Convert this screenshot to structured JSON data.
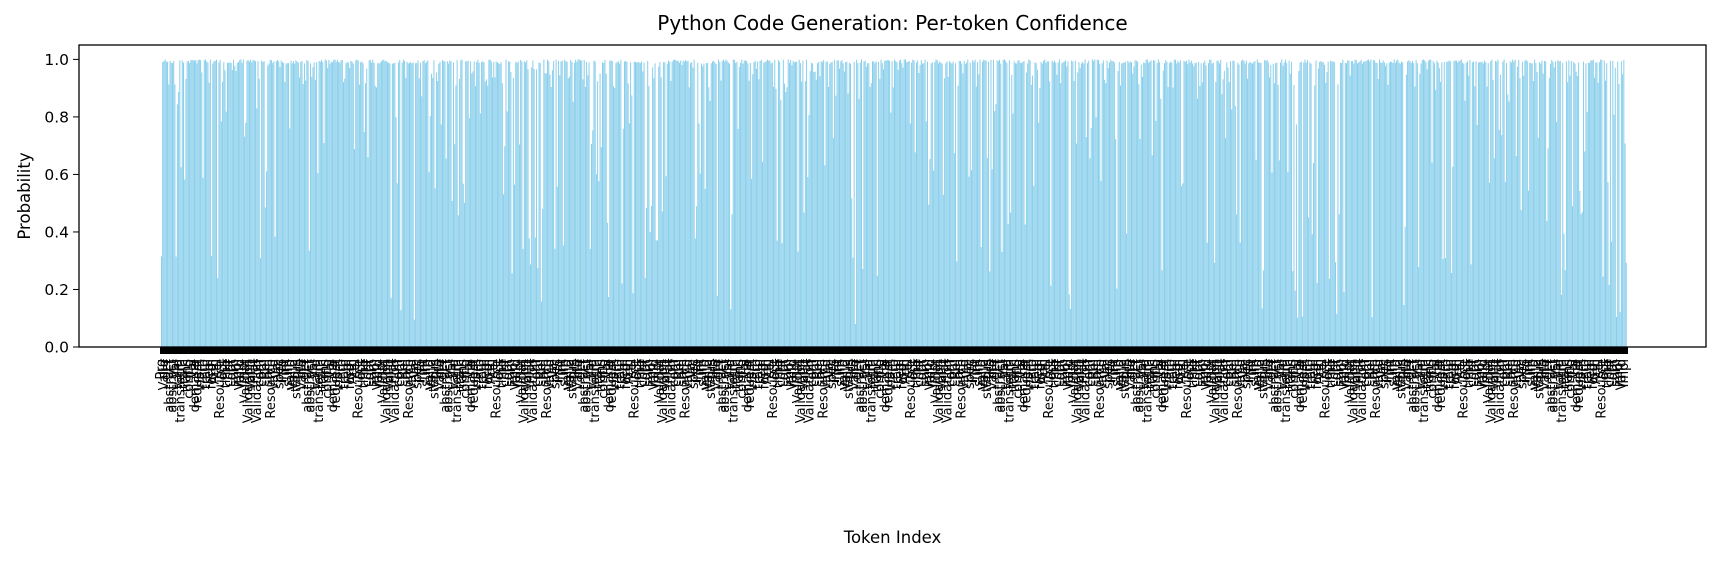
{
  "chart_data": {
    "type": "bar",
    "title": "Python Code Generation: Per-token Confidence",
    "xlabel": "Token Index",
    "ylabel": "Probability",
    "ylim": [
      0,
      1.05
    ],
    "yticks": [
      "0.0",
      "0.2",
      "0.4",
      "0.6",
      "0.8",
      "1.0"
    ],
    "ytick_values": [
      0,
      0.2,
      0.4,
      0.6,
      0.8,
      1.0
    ],
    "bar_color": "#87ceeb",
    "grid": false,
    "token_count": 1200,
    "value_distribution": "most tokens near 0.99–1.0; scattered dips to 0.1–0.5",
    "categories": [
      "Pro",
      "Valid",
      "def",
      "abstract",
      "abstract",
      "Val",
      "Valid",
      "transform",
      "train",
      "trans",
      "config",
      "val",
      "demand",
      "request",
      "nam",
      "Pro",
      "train",
      "regi",
      "form",
      "Ann",
      "sel",
      "Resource",
      "opt",
      "time",
      "conf",
      "opt",
      "sum",
      "impl",
      "Valid",
      "Impl",
      "Validat",
      "Validation",
      "Valid",
      "Plat",
      "Validation",
      "conf",
      "com",
      "Rel",
      "sum",
      "Resource",
      "Valid",
      "Val",
      "spec",
      "info",
      "int",
      "sum",
      "valid",
      "Valid",
      "status"
    ]
  }
}
